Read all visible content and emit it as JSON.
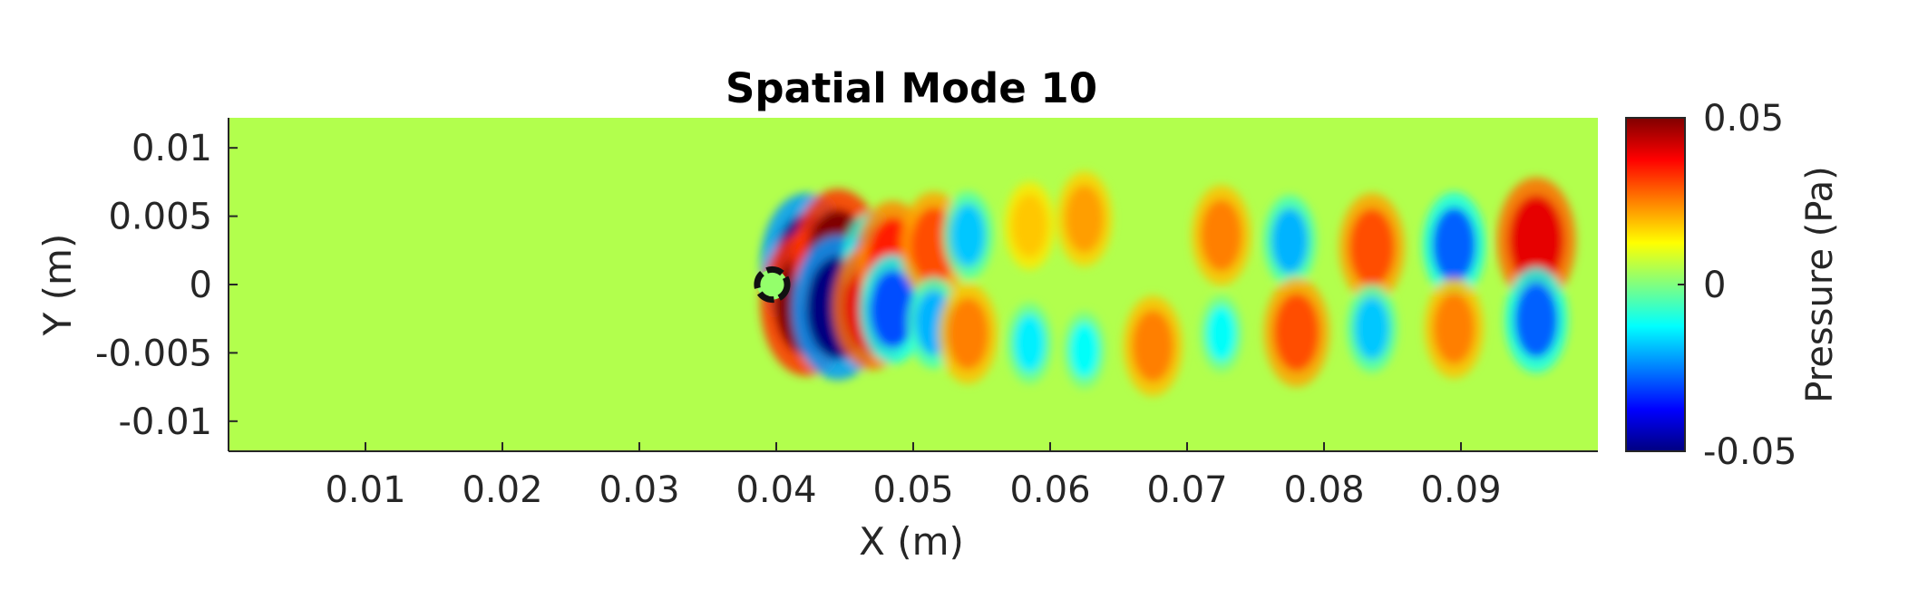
{
  "chart_data": {
    "type": "heatmap",
    "title": "Spatial Mode 10",
    "xlabel": "X (m)",
    "ylabel": "Y (m)",
    "xlim": [
      0,
      0.1
    ],
    "ylim": [
      -0.0122,
      0.0122
    ],
    "x_ticks": [
      {
        "value": 0.01,
        "label": "0.01"
      },
      {
        "value": 0.02,
        "label": "0.02"
      },
      {
        "value": 0.03,
        "label": "0.03"
      },
      {
        "value": 0.04,
        "label": "0.04"
      },
      {
        "value": 0.05,
        "label": "0.05"
      },
      {
        "value": 0.06,
        "label": "0.06"
      },
      {
        "value": 0.07,
        "label": "0.07"
      },
      {
        "value": 0.08,
        "label": "0.08"
      },
      {
        "value": 0.09,
        "label": "0.09"
      }
    ],
    "y_ticks": [
      {
        "value": 0.01,
        "label": "0.01"
      },
      {
        "value": 0.005,
        "label": "0.005"
      },
      {
        "value": 0,
        "label": "0"
      },
      {
        "value": -0.005,
        "label": "-0.005"
      },
      {
        "value": -0.01,
        "label": "-0.01"
      }
    ],
    "colorbar": {
      "label": "Pressure (Pa)",
      "colormap": "jet",
      "clim": [
        -0.05,
        0.05
      ],
      "ticks": [
        {
          "value": 0.05,
          "label": "0.05"
        },
        {
          "value": 0,
          "label": "0"
        },
        {
          "value": -0.05,
          "label": "-0.05"
        }
      ]
    },
    "cylinder": {
      "x": 0.0397,
      "y": 0,
      "diameter": 0.0022
    },
    "field_structures": [
      {
        "x": 0.0422,
        "y": 0.0014,
        "value": -0.05
      },
      {
        "x": 0.0422,
        "y": -0.0014,
        "value": 0.05
      },
      {
        "x": 0.0445,
        "y": 0.0017,
        "value": 0.05
      },
      {
        "x": 0.0445,
        "y": -0.0017,
        "value": -0.05
      },
      {
        "x": 0.047,
        "y": 0.0016,
        "value": -0.025
      },
      {
        "x": 0.047,
        "y": -0.0016,
        "value": 0.04
      },
      {
        "x": 0.0485,
        "y": 0.0018,
        "value": 0.035
      },
      {
        "x": 0.0485,
        "y": -0.0018,
        "value": -0.03
      },
      {
        "x": 0.0515,
        "y": 0.0028,
        "value": 0.03
      },
      {
        "x": 0.0515,
        "y": -0.0028,
        "value": -0.02
      },
      {
        "x": 0.054,
        "y": 0.0036,
        "value": -0.018
      },
      {
        "x": 0.054,
        "y": -0.0036,
        "value": 0.025
      },
      {
        "x": 0.0585,
        "y": 0.0043,
        "value": 0.018
      },
      {
        "x": 0.0585,
        "y": -0.0043,
        "value": -0.014
      },
      {
        "x": 0.0625,
        "y": 0.0048,
        "value": 0.022
      },
      {
        "x": 0.0625,
        "y": -0.0048,
        "value": -0.012
      },
      {
        "x": 0.0675,
        "y": -0.0045,
        "value": 0.025
      },
      {
        "x": 0.0725,
        "y": 0.0036,
        "value": 0.025
      },
      {
        "x": 0.0725,
        "y": -0.0036,
        "value": -0.012
      },
      {
        "x": 0.0775,
        "y": 0.0032,
        "value": -0.02
      },
      {
        "x": 0.078,
        "y": -0.0035,
        "value": 0.03
      },
      {
        "x": 0.0835,
        "y": 0.0027,
        "value": 0.03
      },
      {
        "x": 0.0835,
        "y": -0.0032,
        "value": -0.018
      },
      {
        "x": 0.0895,
        "y": 0.0029,
        "value": -0.028
      },
      {
        "x": 0.0895,
        "y": -0.0032,
        "value": 0.025
      },
      {
        "x": 0.0955,
        "y": 0.0032,
        "value": 0.04
      },
      {
        "x": 0.0955,
        "y": -0.0026,
        "value": -0.028
      }
    ]
  }
}
